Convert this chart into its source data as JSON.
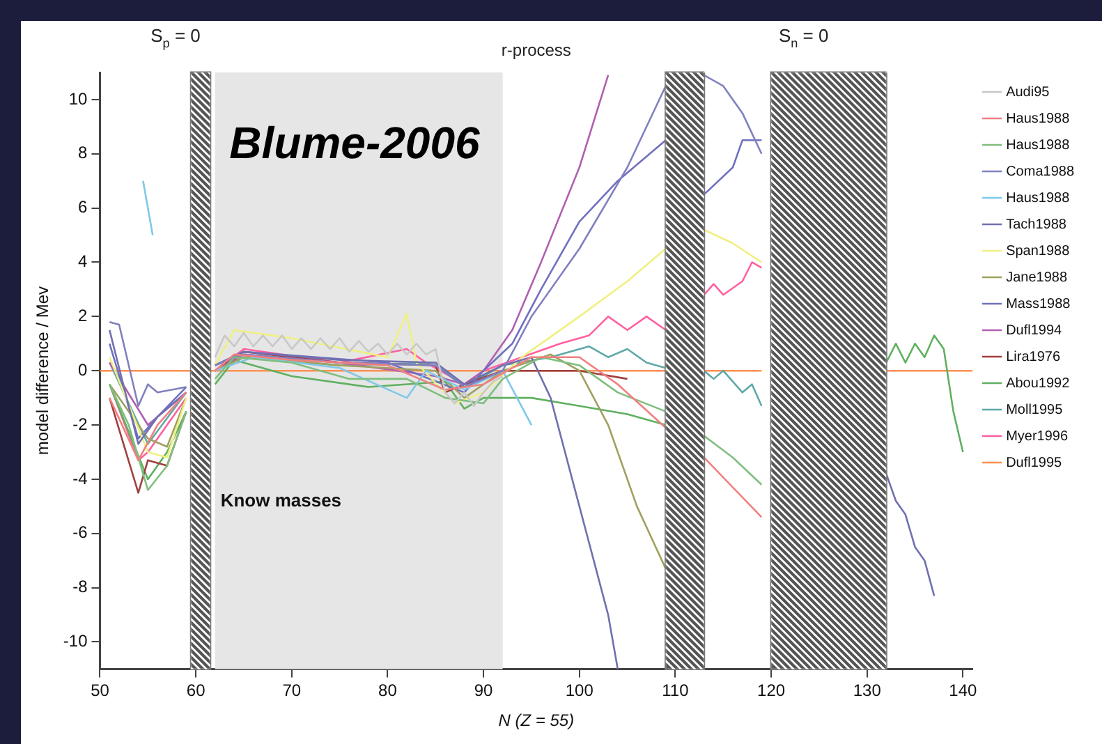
{
  "chart_data": {
    "type": "line",
    "title": "Blume-2006",
    "xlabel": "N (Z = 55)",
    "ylabel": "model difference / Mev",
    "annotations": [
      "r-process"
    ],
    "xlim": [
      50,
      141
    ],
    "xticks": [
      50,
      60,
      70,
      80,
      90,
      100,
      110,
      120,
      130,
      140
    ],
    "ylim": [
      -11,
      11
    ],
    "yticks": [
      -10,
      -8,
      -6,
      -4,
      -2,
      0,
      2,
      4,
      6,
      8,
      10
    ],
    "grid": false,
    "legend": "right",
    "line_style": "solid",
    "bands": [
      {
        "axis": "x",
        "from": 59.5,
        "to": 61.5,
        "label": "S$_{p}$ = 0",
        "color": "#555555"
      },
      {
        "axis": "x",
        "from": 109,
        "to": 113,
        "label": null,
        "color": "#555555"
      },
      {
        "axis": "x",
        "from": 120,
        "to": 132,
        "label": "S$_{n}$ = 0",
        "color": "#555555"
      },
      {
        "axis": "x",
        "from": 62,
        "to": 92,
        "label": "Know masses",
        "color": "#e6e6e6"
      }
    ],
    "series": [
      {
        "name": "Audi95",
        "color": "#c8c8c8",
        "x": [
          62,
          63,
          64,
          65,
          66,
          67,
          68,
          69,
          70,
          71,
          72,
          73,
          74,
          75,
          76,
          77,
          78,
          79,
          80,
          81,
          82,
          83,
          84,
          85,
          86,
          87,
          88,
          89,
          90,
          91,
          92
        ],
        "values": [
          0.5,
          1.3,
          0.9,
          1.4,
          0.9,
          1.3,
          0.9,
          1.3,
          0.8,
          1.2,
          0.8,
          1.2,
          0.8,
          1.2,
          0.7,
          1.1,
          0.7,
          1.0,
          0.6,
          1.0,
          0.6,
          1.0,
          0.6,
          0.8,
          -0.8,
          -1.2,
          -0.8,
          -1.3,
          -0.8,
          -0.4,
          -0.2
        ]
      },
      {
        "name": "Haus1988",
        "color": "#f08080",
        "x": [
          51,
          54,
          56,
          59,
          61,
          62,
          64,
          70,
          80,
          86,
          90,
          95,
          100,
          104,
          109,
          111,
          113,
          116,
          119
        ],
        "values": [
          -1,
          -3.3,
          -2,
          -0.8,
          null,
          0,
          0.6,
          0.4,
          0.2,
          -0.7,
          -0.5,
          0.5,
          0.5,
          -0.5,
          -2.1,
          null,
          -3.2,
          -4.3,
          -5.4
        ]
      },
      {
        "name": "Haus1988",
        "color": "#7fbf7f",
        "x": [
          51,
          53,
          55,
          57,
          59,
          61,
          62,
          64,
          70,
          76,
          82,
          86,
          90,
          92,
          96,
          100,
          104,
          109,
          111,
          113,
          116,
          119
        ],
        "values": [
          -0.5,
          -2,
          -4.4,
          -3.5,
          -1.5,
          null,
          -0.3,
          0.5,
          0.3,
          -0.3,
          -0.3,
          -1,
          -1.2,
          -0.3,
          0.5,
          0.2,
          -0.8,
          -1.5,
          null,
          -2.4,
          -3.2,
          -4.2
        ]
      },
      {
        "name": "Coma1988",
        "color": "#8080c0",
        "x": [
          51,
          52,
          54,
          55,
          56,
          59,
          61,
          62,
          65,
          75,
          85,
          88,
          92,
          95,
          100,
          105,
          109,
          111,
          113,
          115,
          117,
          119
        ],
        "values": [
          1.8,
          1.7,
          -1.3,
          -0.5,
          -0.8,
          -0.6,
          null,
          0.2,
          0.6,
          0.3,
          0.2,
          -0.6,
          0,
          2,
          4.5,
          7.5,
          10.5,
          null,
          10.9,
          10.5,
          9.5,
          8
        ]
      },
      {
        "name": "Haus1988",
        "color": "#80c8e8",
        "x": [
          54.5,
          55.5,
          58,
          62,
          66,
          75,
          82,
          84,
          88,
          92,
          95
        ],
        "values": [
          7,
          5,
          null,
          0,
          0.5,
          0.1,
          -1,
          0,
          -0.7,
          0,
          -2
        ]
      },
      {
        "name": "Tach1988",
        "color": "#7070b0",
        "x": [
          51,
          54,
          56,
          59,
          61,
          62,
          65,
          75,
          85,
          88,
          92,
          95,
          97,
          100,
          103,
          104,
          118,
          132,
          133,
          134,
          135,
          136,
          137
        ],
        "values": [
          1.5,
          -2.7,
          -1.7,
          -0.8,
          null,
          0.2,
          0.7,
          0.4,
          0.3,
          -0.5,
          0.2,
          0.5,
          -1,
          -5,
          -9,
          -11,
          null,
          -3.8,
          -4.8,
          -5.3,
          -6.5,
          -7,
          -8.3
        ]
      },
      {
        "name": "Span1988",
        "color": "#f0f080",
        "x": [
          51,
          55,
          57,
          59,
          61,
          62,
          64,
          70,
          80,
          82,
          83,
          87,
          90,
          94,
          100,
          105,
          109,
          111,
          113,
          116,
          119
        ],
        "values": [
          0.5,
          -3,
          -3.2,
          -1,
          null,
          0.2,
          1.5,
          1.2,
          0.5,
          2.1,
          0.3,
          -1.2,
          -0.8,
          0.5,
          2,
          3.3,
          4.5,
          null,
          5.2,
          4.7,
          4
        ]
      },
      {
        "name": "Jane1988",
        "color": "#a0a060",
        "x": [
          51,
          55,
          57,
          59,
          61,
          62,
          65,
          75,
          85,
          88,
          92,
          97,
          100,
          103,
          106,
          109
        ],
        "values": [
          -0.5,
          -2.5,
          -2.8,
          -1,
          null,
          0,
          0.5,
          0.2,
          0,
          -1,
          0,
          0.6,
          0,
          -2,
          -5,
          -7.3
        ]
      },
      {
        "name": "Mass1988",
        "color": "#7070c0",
        "x": [
          51,
          54,
          56,
          59,
          61,
          62,
          65,
          80,
          88,
          90,
          93,
          96,
          100,
          104,
          109,
          111,
          113,
          116,
          117,
          119
        ],
        "values": [
          1,
          -2.5,
          -1.7,
          -0.6,
          null,
          0.2,
          0.7,
          0.3,
          -0.8,
          0,
          1,
          3,
          5.5,
          7,
          8.5,
          null,
          6.5,
          7.5,
          8.5,
          8.5
        ]
      },
      {
        "name": "Dufl1994",
        "color": "#b060b0",
        "x": [
          51,
          55,
          59,
          61,
          62,
          65,
          75,
          85,
          88,
          90,
          93,
          96,
          100,
          103
        ],
        "values": [
          0.3,
          -2,
          -0.8,
          null,
          0,
          0.6,
          0.3,
          -0.2,
          -0.5,
          0,
          1.5,
          4,
          7.5,
          10.9
        ]
      },
      {
        "name": "Lira1976",
        "color": "#a04040",
        "x": [
          51,
          54,
          55,
          57,
          59,
          61,
          62,
          65,
          75,
          85,
          86,
          88,
          92,
          100,
          105
        ],
        "values": [
          -1,
          -4.5,
          -3.3,
          -3.5,
          -1.5,
          null,
          0,
          0.7,
          0.3,
          0.2,
          -0.8,
          -0.5,
          0,
          0,
          -0.3
        ]
      },
      {
        "name": "Abou1992",
        "color": "#60b060",
        "x": [
          51,
          55,
          57,
          59,
          61,
          62,
          64,
          70,
          78,
          86,
          88,
          90,
          95,
          100,
          105,
          109,
          120,
          132,
          133,
          134,
          135,
          136,
          137,
          138,
          139,
          140
        ],
        "values": [
          -0.5,
          -4,
          -3,
          -1.5,
          null,
          -0.5,
          0.4,
          -0.2,
          -0.6,
          -0.4,
          -1.4,
          -1,
          -1,
          -1.3,
          -1.6,
          -2,
          null,
          0.3,
          1,
          0.3,
          1,
          0.5,
          1.3,
          0.8,
          -1.5,
          -3
        ]
      },
      {
        "name": "Moll1995",
        "color": "#60a8a8",
        "x": [
          51,
          55,
          59,
          61,
          62,
          65,
          75,
          85,
          88,
          92,
          97,
          99,
          101,
          103,
          105,
          107,
          109,
          111,
          113,
          114,
          115,
          117,
          118,
          119
        ],
        "values": [
          0.3,
          -2.7,
          -0.8,
          null,
          0,
          0.5,
          0.2,
          0.3,
          -0.6,
          0.2,
          0.5,
          0.7,
          0.9,
          0.5,
          0.8,
          0.3,
          0.1,
          null,
          0,
          -0.3,
          0,
          -0.8,
          -0.5,
          -1.3
        ]
      },
      {
        "name": "Myer1996",
        "color": "#ff60a0",
        "x": [
          51,
          54,
          55,
          59,
          61,
          62,
          65,
          75,
          82,
          84,
          88,
          90,
          94,
          98,
          101,
          103,
          105,
          107,
          109,
          111,
          113,
          114,
          115,
          117,
          118,
          119
        ],
        "values": [
          -0.5,
          -3.3,
          -3,
          -1,
          null,
          0,
          0.8,
          0.3,
          0.8,
          0.3,
          -0.5,
          0,
          0.5,
          1,
          1.3,
          2,
          1.5,
          2,
          1.5,
          null,
          2.8,
          3.2,
          2.8,
          3.3,
          4,
          3.8
        ]
      },
      {
        "name": "Dufl1995",
        "color": "#ff9050",
        "x": [
          50,
          109,
          111,
          113,
          119,
          125,
          132,
          141
        ],
        "values": [
          0,
          0,
          null,
          0,
          0,
          null,
          0,
          0
        ]
      }
    ]
  }
}
